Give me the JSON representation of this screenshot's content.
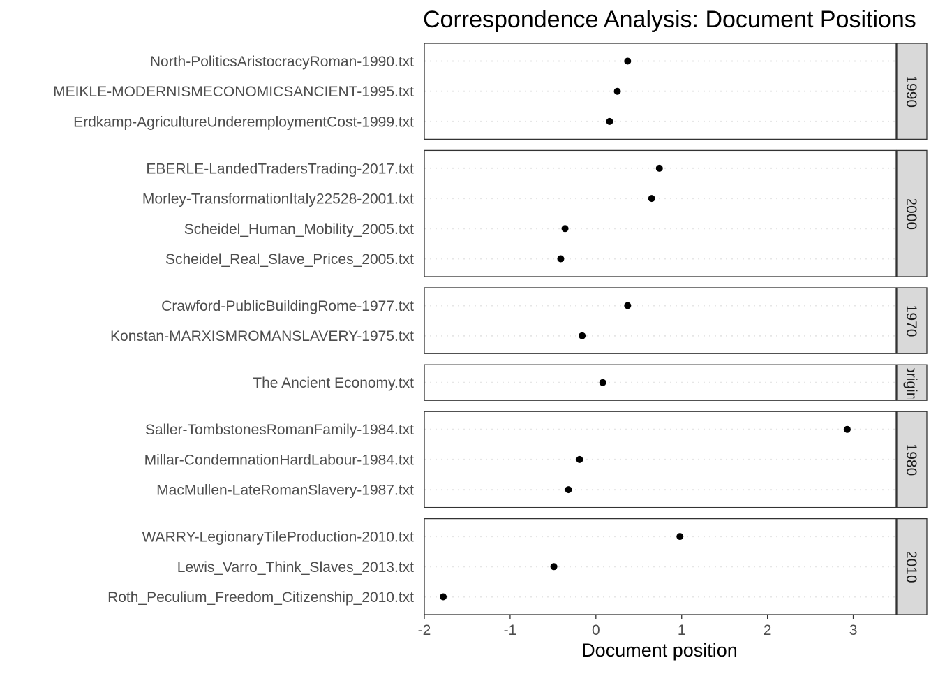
{
  "chart_data": {
    "type": "scatter",
    "title": "Correspondence Analysis: Document Positions",
    "xlabel": "Document position",
    "ylabel": "",
    "xlim": [
      -2,
      3.5
    ],
    "x_ticks": [
      "-2",
      "-1",
      "0",
      "1",
      "2",
      "3"
    ],
    "facet_by": "period",
    "grid": "dotted horizontal guides",
    "facets": [
      {
        "strip": "1990",
        "documents": [
          {
            "label": "North-PoliticsAristocracyRoman-1990.txt",
            "x": 0.37
          },
          {
            "label": "MEIKLE-MODERNISMECONOMICSANCIENT-1995.txt",
            "x": 0.25
          },
          {
            "label": "Erdkamp-AgricultureUnderemploymentCost-1999.txt",
            "x": 0.16
          }
        ]
      },
      {
        "strip": "2000",
        "documents": [
          {
            "label": "EBERLE-LandedTradersTrading-2017.txt",
            "x": 0.74
          },
          {
            "label": "Morley-TransformationItaly22528-2001.txt",
            "x": 0.65
          },
          {
            "label": "Scheidel_Human_Mobility_2005.txt",
            "x": -0.36
          },
          {
            "label": "Scheidel_Real_Slave_Prices_2005.txt",
            "x": -0.41
          }
        ]
      },
      {
        "strip": "1970",
        "documents": [
          {
            "label": "Crawford-PublicBuildingRome-1977.txt",
            "x": 0.37
          },
          {
            "label": "Konstan-MARXISMROMANSLAVERY-1975.txt",
            "x": -0.16
          }
        ]
      },
      {
        "strip": "origin",
        "documents": [
          {
            "label": "The Ancient Economy.txt",
            "x": 0.08
          }
        ]
      },
      {
        "strip": "1980",
        "documents": [
          {
            "label": "Saller-TombstonesRomanFamily-1984.txt",
            "x": 2.93
          },
          {
            "label": "Millar-CondemnationHardLabour-1984.txt",
            "x": -0.19
          },
          {
            "label": "MacMullen-LateRomanSlavery-1987.txt",
            "x": -0.32
          }
        ]
      },
      {
        "strip": "2010",
        "documents": [
          {
            "label": "WARRY-LegionaryTileProduction-2010.txt",
            "x": 0.98
          },
          {
            "label": "Lewis_Varro_Think_Slaves_2013.txt",
            "x": -0.49
          },
          {
            "label": "Roth_Peculium_Freedom_Citizenship_2010.txt",
            "x": -1.78
          }
        ]
      }
    ]
  },
  "colors": {
    "point": "#000000",
    "panel_border": "#333333",
    "strip_fill": "#d9d9d9",
    "guide": "#e6e6e6",
    "label": "#4d4d4d"
  }
}
